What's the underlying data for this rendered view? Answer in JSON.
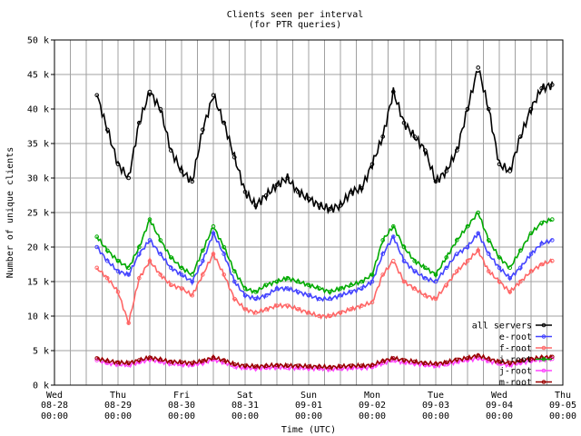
{
  "chart_data": {
    "type": "line",
    "title": "Clients seen per interval",
    "subtitle": "(for PTR queries)",
    "xlabel": "Time (UTC)",
    "ylabel": "Number of unique clients",
    "ylim": [
      0,
      50000
    ],
    "xlim": [
      "08-28 00:00",
      "09-05 00:00"
    ],
    "grid": true,
    "legend_position": "bottom-right",
    "y_ticks": [
      {
        "value": 0,
        "label": "0 k"
      },
      {
        "value": 5000,
        "label": "5 k"
      },
      {
        "value": 10000,
        "label": "10 k"
      },
      {
        "value": 15000,
        "label": "15 k"
      },
      {
        "value": 20000,
        "label": "20 k"
      },
      {
        "value": 25000,
        "label": "25 k"
      },
      {
        "value": 30000,
        "label": "30 k"
      },
      {
        "value": 35000,
        "label": "35 k"
      },
      {
        "value": 40000,
        "label": "40 k"
      },
      {
        "value": 45000,
        "label": "45 k"
      },
      {
        "value": 50000,
        "label": "50 k"
      }
    ],
    "x_ticks": [
      {
        "day": 0,
        "weekday": "Wed",
        "date": "08-28",
        "time": "00:00"
      },
      {
        "day": 1,
        "weekday": "Thu",
        "date": "08-29",
        "time": "00:00"
      },
      {
        "day": 2,
        "weekday": "Fri",
        "date": "08-30",
        "time": "00:00"
      },
      {
        "day": 3,
        "weekday": "Sat",
        "date": "08-31",
        "time": "00:00"
      },
      {
        "day": 4,
        "weekday": "Sun",
        "date": "09-01",
        "time": "00:00"
      },
      {
        "day": 5,
        "weekday": "Mon",
        "date": "09-02",
        "time": "00:00"
      },
      {
        "day": 6,
        "weekday": "Tue",
        "date": "09-03",
        "time": "00:00"
      },
      {
        "day": 7,
        "weekday": "Wed",
        "date": "09-04",
        "time": "00:00"
      },
      {
        "day": 8,
        "weekday": "Thu",
        "date": "09-05",
        "time": "00:00"
      }
    ],
    "x": [
      "08-28 16:00",
      "08-28 20:00",
      "08-29 00:00",
      "08-29 04:00",
      "08-29 08:00",
      "08-29 12:00",
      "08-29 16:00",
      "08-29 20:00",
      "08-30 00:00",
      "08-30 04:00",
      "08-30 08:00",
      "08-30 12:00",
      "08-30 16:00",
      "08-30 20:00",
      "08-31 00:00",
      "08-31 04:00",
      "08-31 08:00",
      "08-31 12:00",
      "08-31 16:00",
      "08-31 20:00",
      "09-01 00:00",
      "09-01 04:00",
      "09-01 08:00",
      "09-01 12:00",
      "09-01 16:00",
      "09-01 20:00",
      "09-02 00:00",
      "09-02 04:00",
      "09-02 08:00",
      "09-02 12:00",
      "09-02 16:00",
      "09-02 20:00",
      "09-03 00:00",
      "09-03 04:00",
      "09-03 08:00",
      "09-03 12:00",
      "09-03 16:00",
      "09-03 20:00",
      "09-04 00:00",
      "09-04 04:00",
      "09-04 08:00",
      "09-04 12:00",
      "09-04 16:00",
      "09-04 20:00"
    ],
    "series": [
      {
        "name": "all servers",
        "color": "#000000",
        "values": [
          42000,
          37000,
          32000,
          30000,
          38000,
          42500,
          40000,
          34000,
          31000,
          29500,
          37000,
          42000,
          38000,
          33000,
          28000,
          26000,
          27500,
          29000,
          30000,
          28000,
          27000,
          26000,
          25500,
          26000,
          28000,
          28500,
          32000,
          36000,
          42500,
          38000,
          36000,
          34000,
          29500,
          31000,
          34000,
          40000,
          46000,
          40000,
          32000,
          31000,
          36000,
          40000,
          43000,
          43500
        ]
      },
      {
        "name": "e-root",
        "color": "#4444ff",
        "values": [
          20000,
          18000,
          16500,
          16000,
          19000,
          21000,
          19000,
          17000,
          16000,
          15000,
          18000,
          22000,
          19000,
          15000,
          13000,
          12500,
          13000,
          14000,
          14000,
          13500,
          13000,
          12500,
          12500,
          13000,
          13500,
          14000,
          15000,
          19000,
          21500,
          18000,
          16500,
          15500,
          15000,
          17000,
          19000,
          20000,
          22000,
          19000,
          17000,
          15500,
          17000,
          19000,
          20500,
          21000
        ]
      },
      {
        "name": "f-root",
        "color": "#ff6666",
        "values": [
          17000,
          15500,
          13500,
          9000,
          15500,
          18000,
          16000,
          14500,
          14000,
          13000,
          16000,
          19000,
          16000,
          12500,
          11000,
          10500,
          11000,
          11500,
          11500,
          11000,
          10500,
          10000,
          10000,
          10500,
          11000,
          11500,
          12000,
          16000,
          18000,
          15000,
          14000,
          13000,
          12500,
          14500,
          16500,
          18000,
          19500,
          16500,
          15000,
          13500,
          15000,
          16500,
          17500,
          18000
        ]
      },
      {
        "name": "i-root",
        "color": "#00aa00",
        "values": [
          21500,
          19500,
          18000,
          17000,
          20000,
          24000,
          21000,
          18500,
          17000,
          16000,
          19500,
          23000,
          20000,
          16500,
          14000,
          13500,
          14500,
          15000,
          15500,
          15000,
          14500,
          14000,
          13500,
          14000,
          14500,
          15000,
          16000,
          21000,
          23000,
          20000,
          18000,
          17000,
          16000,
          18500,
          21000,
          23000,
          25000,
          21000,
          18500,
          17000,
          19500,
          22000,
          23500,
          24000
        ]
      },
      {
        "name": "j-root",
        "color": "#ff44ff",
        "values": [
          3600,
          3200,
          3000,
          2900,
          3300,
          3700,
          3400,
          3100,
          3000,
          2900,
          3200,
          3700,
          3300,
          2700,
          2500,
          2400,
          2500,
          2600,
          2500,
          2500,
          2400,
          2400,
          2300,
          2400,
          2500,
          2500,
          2600,
          3200,
          3600,
          3300,
          3100,
          2900,
          2800,
          3000,
          3400,
          3600,
          3900,
          3500,
          3100,
          2900,
          3200,
          3500,
          3700,
          3800
        ]
      },
      {
        "name": "m-root",
        "color": "#990000",
        "values": [
          3900,
          3500,
          3300,
          3200,
          3600,
          4000,
          3700,
          3400,
          3300,
          3200,
          3500,
          4000,
          3600,
          3000,
          2800,
          2700,
          2800,
          2900,
          2800,
          2800,
          2700,
          2700,
          2600,
          2700,
          2800,
          2800,
          2900,
          3500,
          3900,
          3600,
          3400,
          3200,
          3100,
          3300,
          3700,
          3900,
          4300,
          3800,
          3400,
          3200,
          3500,
          3800,
          4000,
          4100
        ]
      }
    ]
  }
}
